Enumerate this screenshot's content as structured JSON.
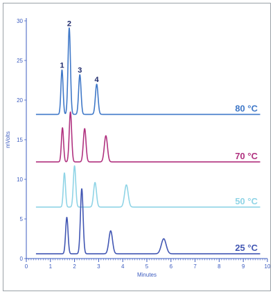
{
  "chart_data": {
    "type": "line",
    "xlabel": "Minutes",
    "ylabel": "mVolts",
    "xlim": [
      0,
      10
    ],
    "ylim": [
      0,
      30
    ],
    "xticks": [
      "0",
      "1",
      "2",
      "3",
      "4",
      "5",
      "6",
      "7",
      "8",
      "9",
      "10"
    ],
    "yticks": [
      "0",
      "5",
      "10",
      "15",
      "20",
      "25",
      "30"
    ],
    "peak_labels": [
      "1",
      "2",
      "3",
      "4"
    ],
    "series": [
      {
        "name": "80 °C",
        "color": "#3f78c8",
        "baseline": 18.2,
        "peaks": [
          {
            "t": 1.48,
            "h": 5.6,
            "w": 0.045
          },
          {
            "t": 1.78,
            "h": 10.9,
            "w": 0.05
          },
          {
            "t": 2.22,
            "h": 5.0,
            "w": 0.05
          },
          {
            "t": 2.92,
            "h": 3.8,
            "w": 0.055
          }
        ]
      },
      {
        "name": "70 °C",
        "color": "#b0317f",
        "baseline": 12.2,
        "peaks": [
          {
            "t": 1.5,
            "h": 4.3,
            "w": 0.045
          },
          {
            "t": 1.83,
            "h": 6.3,
            "w": 0.05
          },
          {
            "t": 2.42,
            "h": 4.2,
            "w": 0.055
          },
          {
            "t": 3.3,
            "h": 3.3,
            "w": 0.065
          }
        ]
      },
      {
        "name": "50 °C",
        "color": "#8fd4e6",
        "baseline": 6.5,
        "peaks": [
          {
            "t": 1.58,
            "h": 4.3,
            "w": 0.045
          },
          {
            "t": 2.0,
            "h": 5.2,
            "w": 0.05
          },
          {
            "t": 2.85,
            "h": 3.1,
            "w": 0.06
          },
          {
            "t": 4.15,
            "h": 2.8,
            "w": 0.075
          }
        ]
      },
      {
        "name": "25 °C",
        "color": "#4156b3",
        "baseline": 0.6,
        "peaks": [
          {
            "t": 1.68,
            "h": 4.6,
            "w": 0.05
          },
          {
            "t": 2.3,
            "h": 8.2,
            "w": 0.055
          },
          {
            "t": 3.5,
            "h": 2.9,
            "w": 0.075
          },
          {
            "t": 5.7,
            "h": 1.9,
            "w": 0.1
          }
        ]
      }
    ],
    "grid": false,
    "legend": "inline-right"
  }
}
